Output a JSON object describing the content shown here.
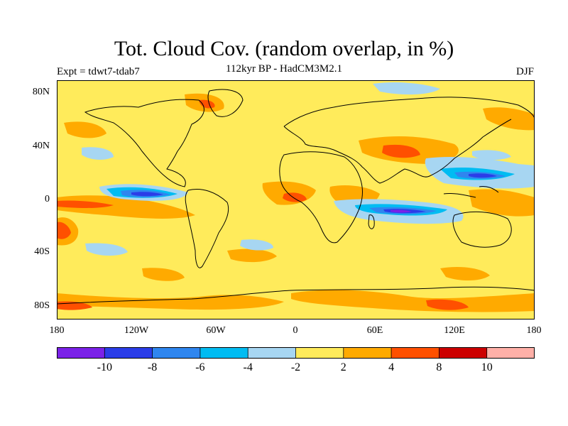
{
  "title": "Tot. Cloud Cov. (random overlap, in %)",
  "subtitle": "112kyr BP - HadCM3M2.1",
  "experiment": "Expt = tdwt7-tdab7",
  "season": "DJF",
  "y_ticks": [
    "80N",
    "40N",
    "0",
    "40S",
    "80S"
  ],
  "x_ticks": [
    "180",
    "120W",
    "60W",
    "0",
    "60E",
    "120E",
    "180"
  ],
  "colorbar": {
    "colors": [
      "#7b22e8",
      "#2b3de8",
      "#2f86ef",
      "#00bcf2",
      "#a7d6f2",
      "#ffeb5b",
      "#ffaa00",
      "#ff5000",
      "#cc0000",
      "#ffb0a8"
    ],
    "labels": [
      "-10",
      "-8",
      "-6",
      "-4",
      "-2",
      "2",
      "4",
      "8",
      "10"
    ]
  },
  "map_data": {
    "background_color": "#ffeb5b",
    "coastline_color": "#000000"
  }
}
